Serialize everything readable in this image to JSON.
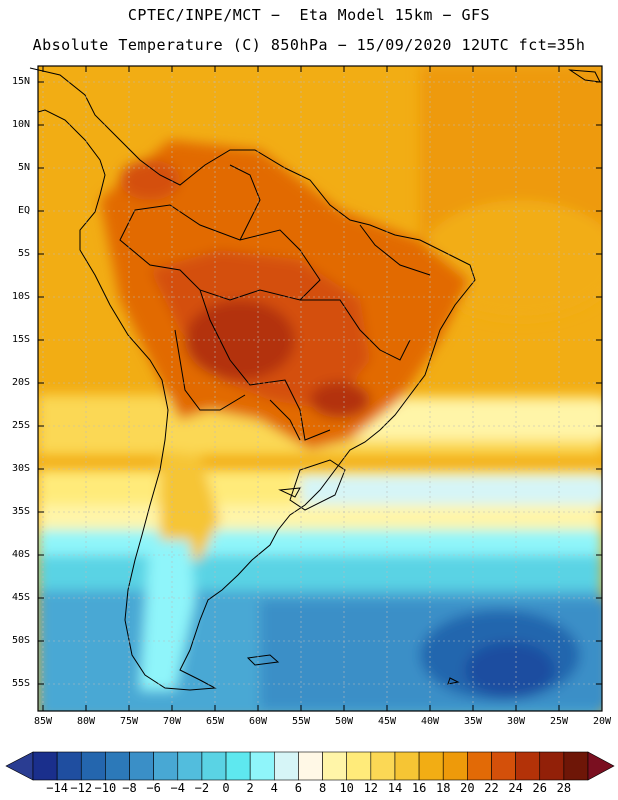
{
  "header": {
    "title_line1": "CPTEC/INPE/MCT −  Eta Model 15km − GFS",
    "title_line2": "Absolute Temperature (C) 850hPa − 15/09/2020 12UTC fct=35h"
  },
  "axes": {
    "lat_labels": [
      "15N",
      "10N",
      "5N",
      "EQ",
      "5S",
      "10S",
      "15S",
      "20S",
      "25S",
      "30S",
      "35S",
      "40S",
      "45S",
      "50S",
      "55S"
    ],
    "lon_labels": [
      "85W",
      "80W",
      "75W",
      "70W",
      "65W",
      "60W",
      "55W",
      "50W",
      "45W",
      "40W",
      "35W",
      "30W",
      "25W",
      "20W"
    ]
  },
  "colorbar": {
    "labels": [
      "-14",
      "-12",
      "-10",
      "-8",
      "-6",
      "-4",
      "-2",
      "0",
      "2",
      "4",
      "6",
      "8",
      "10",
      "12",
      "14",
      "16",
      "18",
      "20",
      "22",
      "24",
      "26",
      "28"
    ],
    "colors": [
      "#1a2f8c",
      "#1f4ea0",
      "#2466ae",
      "#2c79b9",
      "#3a8fc7",
      "#48a8d4",
      "#52bddd",
      "#5ad3e4",
      "#5ee8ef",
      "#8ff5fa",
      "#d6f5f7",
      "#fff8e6",
      "#fff5a8",
      "#ffeb7a",
      "#fbd855",
      "#f6c534",
      "#f2ad14",
      "#ee9a0a",
      "#e26a06",
      "#d4500a",
      "#b33208",
      "#922008",
      "#6e1607"
    ],
    "under_color": "#2a3d92",
    "over_color": "#7a0f20"
  }
}
